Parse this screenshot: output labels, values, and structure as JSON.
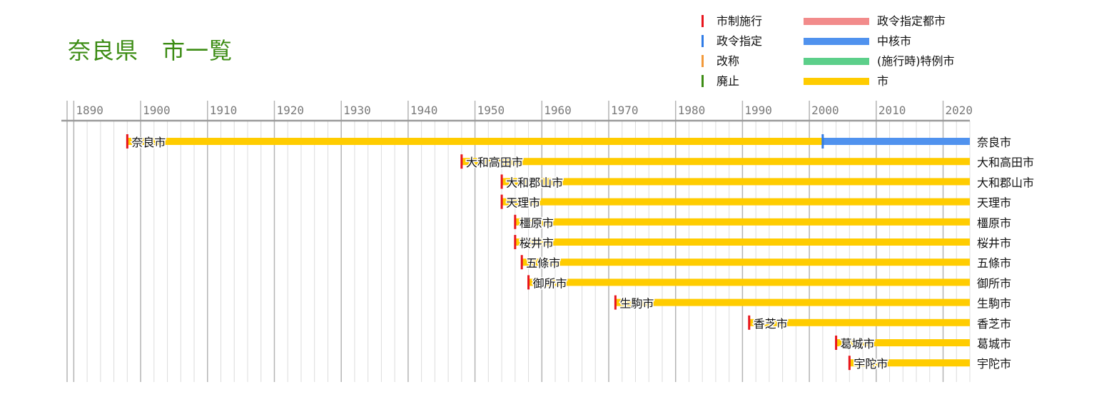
{
  "title": "奈良県　市一覧",
  "legend": {
    "markers": [
      {
        "label": "市制施行",
        "color": "#e8141c"
      },
      {
        "label": "政令指定",
        "color": "#2f7be6"
      },
      {
        "label": "改称",
        "color": "#f2993a"
      },
      {
        "label": "廃止",
        "color": "#3c8c14"
      }
    ],
    "bars": [
      {
        "label": "政令指定都市",
        "color": "#f28b8b"
      },
      {
        "label": "中核市",
        "color": "#5092ee"
      },
      {
        "label": "(施行時)特例市",
        "color": "#5ccf8a"
      },
      {
        "label": "市",
        "color": "#ffcc00"
      }
    ]
  },
  "chart_data": {
    "type": "timeline",
    "title": "奈良県　市一覧",
    "x_ticks": [
      "1890",
      "1900",
      "1910",
      "1920",
      "1930",
      "1940",
      "1950",
      "1960",
      "1970",
      "1980",
      "1990",
      "2000",
      "2010",
      "2020"
    ],
    "xlim": [
      1889,
      2024
    ],
    "grid": true,
    "legend_position": "top-right",
    "cities": [
      {
        "name": "奈良市",
        "established": 1898,
        "segments": [
          {
            "start": 1898,
            "end": 2002,
            "status": "市"
          },
          {
            "start": 2002,
            "end": 2024,
            "status": "中核市"
          }
        ],
        "markers": [
          {
            "year": 1898,
            "type": "市制施行"
          },
          {
            "year": 2002,
            "type": "政令指定"
          }
        ]
      },
      {
        "name": "大和高田市",
        "established": 1948,
        "segments": [
          {
            "start": 1948,
            "end": 2024,
            "status": "市"
          }
        ],
        "markers": [
          {
            "year": 1948,
            "type": "市制施行"
          }
        ]
      },
      {
        "name": "大和郡山市",
        "established": 1954,
        "segments": [
          {
            "start": 1954,
            "end": 2024,
            "status": "市"
          }
        ],
        "markers": [
          {
            "year": 1954,
            "type": "市制施行"
          }
        ]
      },
      {
        "name": "天理市",
        "established": 1954,
        "segments": [
          {
            "start": 1954,
            "end": 2024,
            "status": "市"
          }
        ],
        "markers": [
          {
            "year": 1954,
            "type": "市制施行"
          }
        ]
      },
      {
        "name": "橿原市",
        "established": 1956,
        "segments": [
          {
            "start": 1956,
            "end": 2024,
            "status": "市"
          }
        ],
        "markers": [
          {
            "year": 1956,
            "type": "市制施行"
          }
        ]
      },
      {
        "name": "桜井市",
        "established": 1956,
        "segments": [
          {
            "start": 1956,
            "end": 2024,
            "status": "市"
          }
        ],
        "markers": [
          {
            "year": 1956,
            "type": "市制施行"
          }
        ]
      },
      {
        "name": "五條市",
        "established": 1957,
        "segments": [
          {
            "start": 1957,
            "end": 2024,
            "status": "市"
          }
        ],
        "markers": [
          {
            "year": 1957,
            "type": "市制施行"
          }
        ]
      },
      {
        "name": "御所市",
        "established": 1958,
        "segments": [
          {
            "start": 1958,
            "end": 2024,
            "status": "市"
          }
        ],
        "markers": [
          {
            "year": 1958,
            "type": "市制施行"
          }
        ]
      },
      {
        "name": "生駒市",
        "established": 1971,
        "segments": [
          {
            "start": 1971,
            "end": 2024,
            "status": "市"
          }
        ],
        "markers": [
          {
            "year": 1971,
            "type": "市制施行"
          }
        ]
      },
      {
        "name": "香芝市",
        "established": 1991,
        "segments": [
          {
            "start": 1991,
            "end": 2024,
            "status": "市"
          }
        ],
        "markers": [
          {
            "year": 1991,
            "type": "市制施行"
          }
        ]
      },
      {
        "name": "葛城市",
        "established": 2004,
        "segments": [
          {
            "start": 2004,
            "end": 2024,
            "status": "市"
          }
        ],
        "markers": [
          {
            "year": 2004,
            "type": "市制施行"
          }
        ]
      },
      {
        "name": "宇陀市",
        "established": 2006,
        "segments": [
          {
            "start": 2006,
            "end": 2024,
            "status": "市"
          }
        ],
        "markers": [
          {
            "year": 2006,
            "type": "市制施行"
          }
        ]
      }
    ]
  }
}
